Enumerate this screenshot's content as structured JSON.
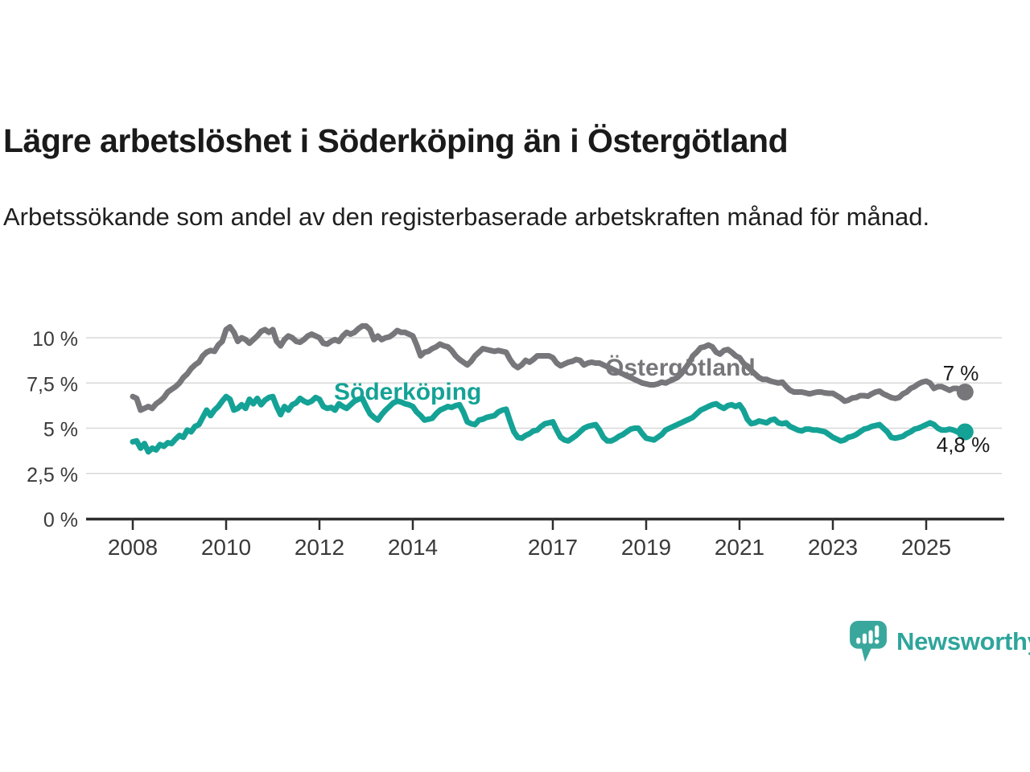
{
  "chart_data": {
    "type": "line",
    "title": "Lägre arbetslöshet i Söderköping än i Östergötland",
    "subtitle": "Arbetssökande som andel av den registerbaserade arbetskraften månad för månad.",
    "unit": "%",
    "frequency": "monthly",
    "x_axis": {
      "ticks": [
        {
          "year": 2008,
          "label": "2008"
        },
        {
          "year": 2010,
          "label": "2010"
        },
        {
          "year": 2012,
          "label": "2012"
        },
        {
          "year": 2014,
          "label": "2014"
        },
        {
          "year": 2017,
          "label": "2017"
        },
        {
          "year": 2019,
          "label": "2019"
        },
        {
          "year": 2021,
          "label": "2021"
        },
        {
          "year": 2023,
          "label": "2023"
        },
        {
          "year": 2025,
          "label": "2025"
        }
      ]
    },
    "y_axis": {
      "range": [
        0,
        10.8
      ],
      "ticks": [
        {
          "value": 10,
          "label": "10 %"
        },
        {
          "value": 7.5,
          "label": "7,5 %"
        },
        {
          "value": 5,
          "label": "5 %"
        },
        {
          "value": 2.5,
          "label": "2,5 %"
        },
        {
          "value": 0,
          "label": "0 %"
        }
      ]
    },
    "series": [
      {
        "name": "Östergötland",
        "color": "#77777b",
        "start_year": 2008,
        "points_per_year": 12,
        "end_label": "7 %",
        "values": [
          6.75,
          6.65,
          6.0,
          6.1,
          6.2,
          6.1,
          6.35,
          6.5,
          6.7,
          7.0,
          7.15,
          7.3,
          7.5,
          7.8,
          8.0,
          8.3,
          8.5,
          8.65,
          9.0,
          9.2,
          9.3,
          9.25,
          9.6,
          9.8,
          10.45,
          10.6,
          10.3,
          9.8,
          10.0,
          9.9,
          9.7,
          9.9,
          10.1,
          10.35,
          10.45,
          10.3,
          10.45,
          9.8,
          9.55,
          9.9,
          10.1,
          10.0,
          9.8,
          9.75,
          9.9,
          10.1,
          10.2,
          10.1,
          10.0,
          9.7,
          9.65,
          9.8,
          9.9,
          9.8,
          10.1,
          10.3,
          10.2,
          10.3,
          10.5,
          10.65,
          10.65,
          10.45,
          9.9,
          10.1,
          9.9,
          10.0,
          10.05,
          10.2,
          10.4,
          10.3,
          10.3,
          10.2,
          10.1,
          9.6,
          9.0,
          9.2,
          9.25,
          9.4,
          9.5,
          9.65,
          9.55,
          9.5,
          9.3,
          9.0,
          8.8,
          8.65,
          8.5,
          8.7,
          9.0,
          9.2,
          9.4,
          9.35,
          9.3,
          9.25,
          9.3,
          9.25,
          9.2,
          8.8,
          8.5,
          8.35,
          8.5,
          8.75,
          8.65,
          8.8,
          9.0,
          9.0,
          9.0,
          9.0,
          8.9,
          8.6,
          8.45,
          8.55,
          8.65,
          8.7,
          8.8,
          8.75,
          8.5,
          8.6,
          8.65,
          8.6,
          8.6,
          8.5,
          8.4,
          8.3,
          8.2,
          8.1,
          8.0,
          7.9,
          7.8,
          7.7,
          7.6,
          7.5,
          7.45,
          7.4,
          7.4,
          7.45,
          7.55,
          7.5,
          7.6,
          7.7,
          7.8,
          8.0,
          8.3,
          8.6,
          9.0,
          9.2,
          9.45,
          9.5,
          9.6,
          9.5,
          9.2,
          9.1,
          9.3,
          9.35,
          9.2,
          9.0,
          8.9,
          8.6,
          8.4,
          8.2,
          8.0,
          7.8,
          7.7,
          7.7,
          7.6,
          7.55,
          7.5,
          7.55,
          7.3,
          7.1,
          7.0,
          7.0,
          7.0,
          6.95,
          6.9,
          6.95,
          7.0,
          7.0,
          6.95,
          6.93,
          6.93,
          6.8,
          6.67,
          6.5,
          6.55,
          6.67,
          6.7,
          6.8,
          6.8,
          6.77,
          6.9,
          7.0,
          7.05,
          6.9,
          6.8,
          6.7,
          6.65,
          6.7,
          6.9,
          7.0,
          7.2,
          7.3,
          7.45,
          7.55,
          7.6,
          7.5,
          7.2,
          7.3,
          7.3,
          7.2,
          7.1,
          7.2,
          7.2,
          7.1,
          7.0
        ]
      },
      {
        "name": "Söderköping",
        "color": "#15a296",
        "start_year": 2008,
        "points_per_year": 12,
        "end_label": "4,8 %",
        "values": [
          4.25,
          4.3,
          3.9,
          4.15,
          3.7,
          3.9,
          3.8,
          4.1,
          4.0,
          4.2,
          4.15,
          4.4,
          4.6,
          4.5,
          4.9,
          4.8,
          5.1,
          5.2,
          5.6,
          6.0,
          5.7,
          6.0,
          6.2,
          6.5,
          6.75,
          6.6,
          6.0,
          6.1,
          6.3,
          6.1,
          6.6,
          6.35,
          6.65,
          6.3,
          6.55,
          6.7,
          6.75,
          6.2,
          5.75,
          6.2,
          6.0,
          6.3,
          6.4,
          6.65,
          6.5,
          6.4,
          6.5,
          6.7,
          6.6,
          6.2,
          6.1,
          6.15,
          6.0,
          6.35,
          6.2,
          6.1,
          6.3,
          6.5,
          6.6,
          6.65,
          6.2,
          5.8,
          5.6,
          5.45,
          5.75,
          6.0,
          6.2,
          6.4,
          6.5,
          6.45,
          6.35,
          6.3,
          6.2,
          5.9,
          5.7,
          5.45,
          5.5,
          5.55,
          5.8,
          6.0,
          6.1,
          6.2,
          6.15,
          6.25,
          6.3,
          5.9,
          5.35,
          5.25,
          5.2,
          5.45,
          5.5,
          5.6,
          5.65,
          5.7,
          5.9,
          6.0,
          6.05,
          5.4,
          4.8,
          4.5,
          4.45,
          4.6,
          4.7,
          4.85,
          4.9,
          5.1,
          5.25,
          5.3,
          5.35,
          4.9,
          4.5,
          4.35,
          4.3,
          4.45,
          4.6,
          4.8,
          5.0,
          5.1,
          5.15,
          5.2,
          4.9,
          4.5,
          4.3,
          4.3,
          4.4,
          4.55,
          4.65,
          4.8,
          4.95,
          5.0,
          5.0,
          4.7,
          4.45,
          4.4,
          4.35,
          4.5,
          4.65,
          4.9,
          5.0,
          5.1,
          5.2,
          5.3,
          5.4,
          5.5,
          5.6,
          5.8,
          6.0,
          6.1,
          6.2,
          6.3,
          6.35,
          6.2,
          6.1,
          6.25,
          6.3,
          6.2,
          6.3,
          6.0,
          5.5,
          5.25,
          5.3,
          5.4,
          5.35,
          5.3,
          5.45,
          5.5,
          5.3,
          5.25,
          5.3,
          5.1,
          5.0,
          4.9,
          4.85,
          4.95,
          4.95,
          4.9,
          4.9,
          4.85,
          4.8,
          4.65,
          4.5,
          4.4,
          4.3,
          4.35,
          4.5,
          4.55,
          4.65,
          4.8,
          4.95,
          5.0,
          5.1,
          5.15,
          5.2,
          5.0,
          4.8,
          4.5,
          4.45,
          4.5,
          4.55,
          4.7,
          4.8,
          4.95,
          5.0,
          5.1,
          5.2,
          5.3,
          5.2,
          5.0,
          4.9,
          4.9,
          4.95,
          4.9,
          4.8,
          4.75,
          4.8
        ]
      }
    ],
    "legend_position": "inline-labels",
    "grid": "horizontal-only"
  },
  "logo": {
    "text": "Newsworthy",
    "icon": "newsworthy-bars-speech-bubble-icon",
    "icon_color": "#3aa79d",
    "text_color": "#2ea59b"
  }
}
